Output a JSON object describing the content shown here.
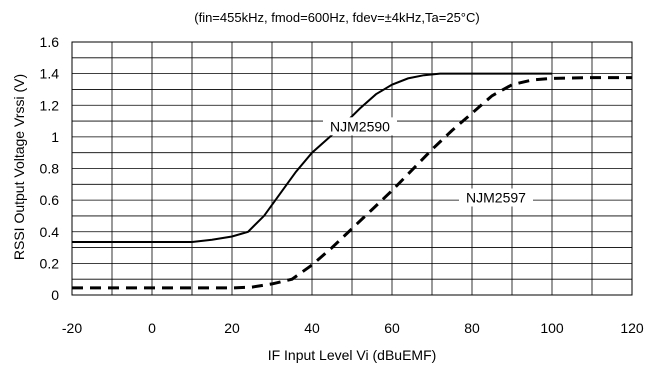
{
  "chart_data": {
    "type": "line",
    "title": "(fin=455kHz, fmod=600Hz, fdev=±4kHz,Ta=25°C)",
    "xlabel": "IF Input Level Vi (dBuEMF)",
    "ylabel": "RSSI Output Voltage Vrssi (V)",
    "xlim": [
      -20,
      120
    ],
    "ylim": [
      0,
      1.6
    ],
    "grid": true,
    "xticks": [
      -20,
      0,
      20,
      40,
      60,
      80,
      100,
      120
    ],
    "yticks": [
      0,
      0.2,
      0.4,
      0.6,
      0.8,
      1,
      1.2,
      1.4,
      1.6
    ],
    "xtick_labels": [
      "-20",
      "0",
      "20",
      "40",
      "60",
      "80",
      "100",
      "120"
    ],
    "ytick_labels": [
      "0",
      "0.2",
      "0.4",
      "0.6",
      "0.8",
      "1",
      "1.2",
      "1.4",
      "1.6"
    ],
    "series": [
      {
        "name": "NJM2590",
        "line_style": "solid",
        "color": "#000000",
        "x": [
          -20,
          -10,
          0,
          10,
          15,
          20,
          24,
          28,
          32,
          36,
          40,
          44,
          48,
          52,
          56,
          60,
          64,
          68,
          72,
          76,
          80,
          90,
          100
        ],
        "y": [
          0.335,
          0.335,
          0.335,
          0.335,
          0.35,
          0.37,
          0.4,
          0.5,
          0.64,
          0.78,
          0.9,
          0.99,
          1.08,
          1.18,
          1.27,
          1.33,
          1.37,
          1.39,
          1.4,
          1.4,
          1.4,
          1.4,
          1.4
        ]
      },
      {
        "name": "NJM2597",
        "line_style": "dashed",
        "color": "#000000",
        "x": [
          -20,
          -10,
          0,
          10,
          20,
          25,
          30,
          35,
          40,
          45,
          50,
          55,
          60,
          65,
          70,
          75,
          80,
          85,
          90,
          95,
          100,
          110,
          120
        ],
        "y": [
          0.045,
          0.045,
          0.045,
          0.045,
          0.045,
          0.05,
          0.07,
          0.1,
          0.19,
          0.3,
          0.42,
          0.54,
          0.66,
          0.79,
          0.92,
          1.04,
          1.15,
          1.26,
          1.33,
          1.36,
          1.37,
          1.375,
          1.375
        ]
      }
    ]
  }
}
